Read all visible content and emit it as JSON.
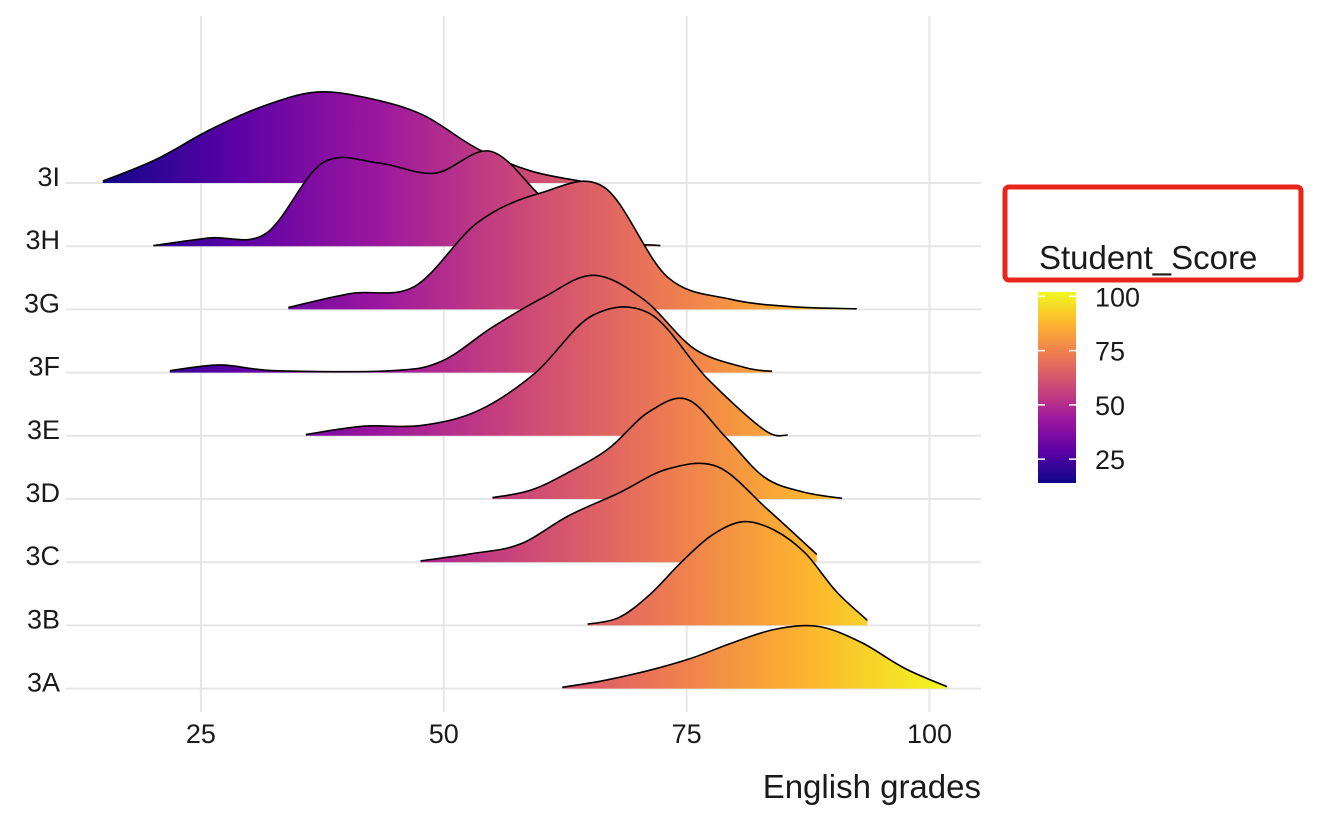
{
  "colors": {
    "scale": [
      "#0d0887",
      "#5c01a6",
      "#9c179e",
      "#cc4778",
      "#ed7953",
      "#fdb42f",
      "#f0f921"
    ],
    "grid": "#e6e6e6",
    "highlight_box": "#e8251a",
    "outline": "#000000"
  },
  "chart_data": {
    "type": "ridgeline",
    "xlabel": "English grades",
    "ylabel": "",
    "x_ticks": [
      25,
      50,
      75,
      100
    ],
    "xlim": [
      10.7,
      105.3
    ],
    "categories": [
      "3A",
      "3B",
      "3C",
      "3D",
      "3E",
      "3F",
      "3G",
      "3H",
      "3I"
    ],
    "fill_by": "x",
    "legend": {
      "title": "Student_Score",
      "type": "colorbar",
      "range": [
        14,
        102
      ],
      "ticks": [
        25,
        50,
        75,
        100
      ],
      "placement": "right",
      "highlighted": true
    },
    "series": [
      {
        "name": "3A",
        "x": [
          62.2,
          66.6,
          71.0,
          75.4,
          79.8,
          84.2,
          88.6,
          93.0,
          97.4,
          101.8
        ],
        "density": [
          0.02,
          0.13,
          0.28,
          0.47,
          0.72,
          0.93,
          0.97,
          0.72,
          0.32,
          0.03
        ]
      },
      {
        "name": "3B",
        "x": [
          64.8,
          68.0,
          71.2,
          74.4,
          77.6,
          80.8,
          84.0,
          87.2,
          90.4,
          93.6
        ],
        "density": [
          0.02,
          0.12,
          0.48,
          0.98,
          1.41,
          1.62,
          1.49,
          1.13,
          0.53,
          0.08
        ]
      },
      {
        "name": "3C",
        "x": [
          47.6,
          52.7,
          57.8,
          62.9,
          68.0,
          73.1,
          78.2,
          83.3,
          88.4
        ],
        "density": [
          0.02,
          0.13,
          0.28,
          0.73,
          1.08,
          1.46,
          1.49,
          0.83,
          0.12
        ]
      },
      {
        "name": "3D",
        "x": [
          55.0,
          59.0,
          63.0,
          67.0,
          71.0,
          75.0,
          79.0,
          83.0,
          87.0,
          91.0
        ],
        "density": [
          0.02,
          0.14,
          0.43,
          0.79,
          1.35,
          1.56,
          0.97,
          0.34,
          0.11,
          0.01
        ]
      },
      {
        "name": "3E",
        "x": [
          35.8,
          41.7,
          47.6,
          53.5,
          59.4,
          65.3,
          71.2,
          77.1,
          83.0,
          85.4
        ],
        "density": [
          0.02,
          0.15,
          0.16,
          0.39,
          0.98,
          1.88,
          1.91,
          0.9,
          0.09,
          0.01
        ]
      },
      {
        "name": "3F",
        "x": [
          21.8,
          27.0,
          32.6,
          44.6,
          49.8,
          55.0,
          60.2,
          65.4,
          70.6,
          75.8,
          81.0,
          83.8
        ],
        "density": [
          0.03,
          0.12,
          0.03,
          0.03,
          0.18,
          0.71,
          1.17,
          1.52,
          1.14,
          0.37,
          0.08,
          0.02
        ]
      },
      {
        "name": "3G",
        "x": [
          34.0,
          40.5,
          47.0,
          53.5,
          60.0,
          66.5,
          73.0,
          79.5,
          86.0,
          92.5
        ],
        "density": [
          0.03,
          0.25,
          0.36,
          1.36,
          1.82,
          1.91,
          0.51,
          0.16,
          0.04,
          0.01
        ]
      },
      {
        "name": "3H",
        "x": [
          20.1,
          25.9,
          31.7,
          37.5,
          43.3,
          49.1,
          54.9,
          60.7,
          66.5,
          72.3
        ],
        "density": [
          0.01,
          0.13,
          0.2,
          1.3,
          1.3,
          1.14,
          1.48,
          0.68,
          0.12,
          0.01
        ]
      },
      {
        "name": "3I",
        "x": [
          14.9,
          20.4,
          25.9,
          31.4,
          36.9,
          42.4,
          47.9,
          53.4,
          58.9,
          64.4
        ],
        "density": [
          0.03,
          0.37,
          0.83,
          1.2,
          1.42,
          1.32,
          1.06,
          0.54,
          0.19,
          0.02
        ]
      }
    ]
  }
}
